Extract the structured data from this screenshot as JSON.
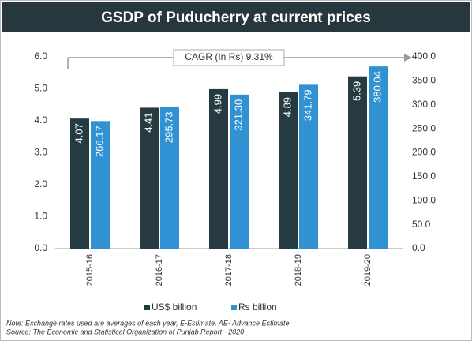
{
  "chart_data": {
    "type": "bar",
    "title": "GSDP of Puducherry at current prices",
    "annotation": "CAGR (In Rs) 9.31%",
    "categories": [
      "2015-16",
      "2016-17",
      "2017-18",
      "2018-19",
      "2019-20"
    ],
    "series": [
      {
        "name": "US$ billion",
        "color": "#263b41",
        "values": [
          4.07,
          4.41,
          4.99,
          4.89,
          5.39
        ]
      },
      {
        "name": "Rs billion",
        "color": "#3092d2",
        "axis": "y2",
        "values": [
          266.17,
          295.73,
          321.3,
          341.79,
          380.04
        ],
        "value_labels": [
          "266.17",
          "295.73",
          "321.30",
          "341.79",
          "380.04"
        ]
      }
    ],
    "ylim": [
      0,
      6
    ],
    "yticks": [
      {
        "value": 0,
        "label": "0.0"
      },
      {
        "value": 1,
        "label": "1.0"
      },
      {
        "value": 2,
        "label": "2.0"
      },
      {
        "value": 3,
        "label": "3.0"
      },
      {
        "value": 4,
        "label": "4.0"
      },
      {
        "value": 5,
        "label": "5.0"
      },
      {
        "value": 6,
        "label": "6.0"
      }
    ],
    "y2lim": [
      0,
      400
    ],
    "y2ticks": [
      {
        "value": 0,
        "label": "0.0"
      },
      {
        "value": 50,
        "label": "50.0"
      },
      {
        "value": 100,
        "label": "100.0"
      },
      {
        "value": 150,
        "label": "150.0"
      },
      {
        "value": 200,
        "label": "200.0"
      },
      {
        "value": 250,
        "label": "250.0"
      },
      {
        "value": 300,
        "label": "300.0"
      },
      {
        "value": 350,
        "label": "350.0"
      },
      {
        "value": 400,
        "label": "400.0"
      }
    ],
    "notes": [
      "Note: Exchange rates used are averages of each year, E-Estimate, AE- Advance Estimate",
      "Source: The Economic and Statistical Organization of Punjab Report - 2020"
    ]
  }
}
